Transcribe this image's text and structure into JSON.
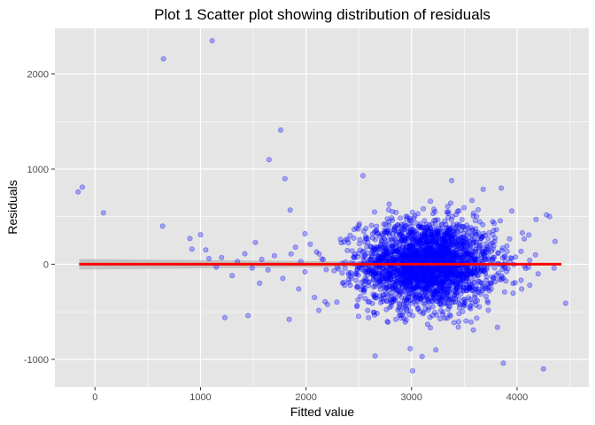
{
  "chart_data": {
    "type": "scatter",
    "title": "Plot 1   Scatter plot showing distribution of residuals",
    "xlabel": "Fitted value",
    "ylabel": "Residuals",
    "xlim": [
      -380,
      4680
    ],
    "ylim": [
      -1290,
      2480
    ],
    "x_ticks": [
      0,
      1000,
      2000,
      3000,
      4000
    ],
    "x_tick_labels": [
      "0",
      "1000",
      "2000",
      "3000",
      "4000"
    ],
    "y_ticks": [
      -1000,
      0,
      1000,
      2000
    ],
    "y_tick_labels": [
      "-1000",
      "0",
      "1000",
      "2000"
    ],
    "grid": true,
    "legend": "none",
    "panel_background": "#e5e5e5",
    "grid_color": "#ffffff",
    "point_color": "#0000ff",
    "point_opacity": 0.3,
    "fit_line_color": "#ff0000",
    "ribbon_color": "#bdbdbd",
    "fit_line": {
      "x": [
        -150,
        4420
      ],
      "y": [
        0,
        0
      ]
    },
    "ribbon": {
      "x": [
        -150,
        4420
      ],
      "ylow_start": -55,
      "yhigh_start": 55,
      "ylow_end": -10,
      "yhigh_end": 10
    },
    "cluster": {
      "center_x": 3150,
      "sd_x": 320,
      "center_y": 0,
      "sd_y": 230,
      "n": 2600
    },
    "sparse_points": [
      {
        "x": -160,
        "y": 760
      },
      {
        "x": -120,
        "y": 810
      },
      {
        "x": 80,
        "y": 540
      },
      {
        "x": 650,
        "y": 2160
      },
      {
        "x": 1110,
        "y": 2350
      },
      {
        "x": 640,
        "y": 400
      },
      {
        "x": 1650,
        "y": 1100
      },
      {
        "x": 1760,
        "y": 1410
      },
      {
        "x": 1800,
        "y": 900
      },
      {
        "x": 1850,
        "y": 570
      },
      {
        "x": 900,
        "y": 270
      },
      {
        "x": 1000,
        "y": 310
      },
      {
        "x": 920,
        "y": 160
      },
      {
        "x": 1050,
        "y": 150
      },
      {
        "x": 1080,
        "y": 60
      },
      {
        "x": 1200,
        "y": 70
      },
      {
        "x": 1150,
        "y": -30
      },
      {
        "x": 1300,
        "y": -120
      },
      {
        "x": 1230,
        "y": -560
      },
      {
        "x": 1450,
        "y": -540
      },
      {
        "x": 1520,
        "y": 230
      },
      {
        "x": 1580,
        "y": 50
      },
      {
        "x": 1640,
        "y": -60
      },
      {
        "x": 1700,
        "y": 90
      },
      {
        "x": 1780,
        "y": -150
      },
      {
        "x": 1840,
        "y": -580
      },
      {
        "x": 1900,
        "y": 180
      },
      {
        "x": 1930,
        "y": -260
      },
      {
        "x": 1950,
        "y": 30
      },
      {
        "x": 1990,
        "y": -80
      },
      {
        "x": 2040,
        "y": 210
      },
      {
        "x": 2080,
        "y": -350
      },
      {
        "x": 1350,
        "y": 30
      },
      {
        "x": 1490,
        "y": -40
      },
      {
        "x": 1420,
        "y": 110
      },
      {
        "x": 1560,
        "y": -200
      },
      {
        "x": 1990,
        "y": 320
      },
      {
        "x": 2100,
        "y": 130
      },
      {
        "x": 2540,
        "y": 930
      },
      {
        "x": 3380,
        "y": 880
      },
      {
        "x": 3850,
        "y": 800
      },
      {
        "x": 3100,
        "y": -970
      },
      {
        "x": 3010,
        "y": -1120
      },
      {
        "x": 3230,
        "y": -900
      },
      {
        "x": 3870,
        "y": -1040
      },
      {
        "x": 4250,
        "y": -1100
      },
      {
        "x": 4460,
        "y": -410
      },
      {
        "x": 4360,
        "y": 240
      },
      {
        "x": 4280,
        "y": 520
      },
      {
        "x": 4180,
        "y": 470
      },
      {
        "x": 4050,
        "y": 330
      },
      {
        "x": 4120,
        "y": -220
      },
      {
        "x": 4200,
        "y": -100
      },
      {
        "x": 4350,
        "y": -40
      },
      {
        "x": 3950,
        "y": 560
      }
    ]
  }
}
